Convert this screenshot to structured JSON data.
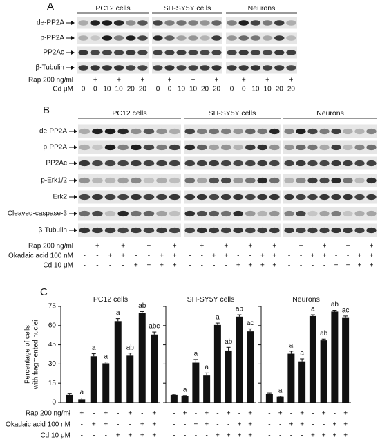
{
  "panel_a": {
    "letter": "A",
    "groups": [
      "PC12 cells",
      "SH-SY5Y cells",
      "Neurons"
    ],
    "rows": [
      "de-PP2A",
      "p-PP2A",
      "PP2Ac",
      "β-Tubulin"
    ],
    "conditions": [
      {
        "label": "Rap 200 ng/ml",
        "values": [
          [
            "-",
            "+",
            "-",
            "+",
            "-",
            "+"
          ],
          [
            "-",
            "+",
            "-",
            "+",
            "-",
            "+"
          ],
          [
            "-",
            "+",
            "-",
            "+",
            "-",
            "+"
          ]
        ]
      },
      {
        "label": "Cd μM",
        "values": [
          [
            0,
            0,
            10,
            10,
            20,
            20
          ],
          [
            0,
            0,
            10,
            10,
            20,
            20
          ],
          [
            0,
            0,
            10,
            10,
            20,
            20
          ]
        ]
      }
    ]
  },
  "panel_b": {
    "letter": "B",
    "groups": [
      "PC12 cells",
      "SH-SY5Y cells",
      "Neurons"
    ],
    "rows": [
      "de-PP2A",
      "p-PP2A",
      "PP2Ac",
      "p-Erk1/2",
      "Erk2",
      "Cleaved-caspase-3",
      "β-Tubulin"
    ],
    "conditions": [
      {
        "label": "Rap 200 ng/ml",
        "values": [
          [
            "-",
            "+",
            "-",
            "+",
            "-",
            "+",
            "-",
            "+"
          ],
          [
            "-",
            "+",
            "-",
            "+",
            "-",
            "+",
            "-",
            "+"
          ],
          [
            "-",
            "+",
            "-",
            "+",
            "-",
            "+",
            "-",
            "+"
          ]
        ]
      },
      {
        "label": "Okadaic acid 100 nM",
        "values": [
          [
            "-",
            "-",
            "+",
            "+",
            "-",
            "-",
            "+",
            "+"
          ],
          [
            "-",
            "-",
            "+",
            "+",
            "-",
            "-",
            "+",
            "+"
          ],
          [
            "-",
            "-",
            "+",
            "+",
            "-",
            "-",
            "+",
            "+"
          ]
        ]
      },
      {
        "label": "Cd 10 μM",
        "values": [
          [
            "-",
            "-",
            "-",
            "-",
            "+",
            "+",
            "+",
            "+"
          ],
          [
            "-",
            "-",
            "-",
            "-",
            "+",
            "+",
            "+",
            "+"
          ],
          [
            "-",
            "-",
            "-",
            "-",
            "+",
            "+",
            "+",
            "+"
          ]
        ]
      }
    ]
  },
  "panel_c": {
    "letter": "C",
    "condition_labels": [
      "Rap 200 ng/ml",
      "Okadaic acid 100 nM",
      "Cd 10 μM"
    ]
  },
  "chart_data": [
    {
      "type": "bar",
      "title": "PC12 cells",
      "ylabel": [
        "Percentage of cells",
        "with fragmented nuclei"
      ],
      "values": [
        6,
        2.5,
        36,
        30.5,
        63.5,
        36.5,
        70,
        53
      ],
      "errors": [
        1.2,
        1,
        2,
        1,
        2,
        2,
        1,
        2
      ],
      "annotations": [
        null,
        "a",
        "a",
        "a",
        "a",
        "ab",
        "ab",
        "abc"
      ],
      "conditions": [
        [
          "-",
          "+",
          "-",
          "+",
          "-",
          "+",
          "-",
          "+"
        ],
        [
          "-",
          "-",
          "+",
          "+",
          "-",
          "-",
          "+",
          "+"
        ],
        [
          "-",
          "-",
          "-",
          "-",
          "+",
          "+",
          "+",
          "+"
        ]
      ],
      "color": "#111111",
      "ylim": [
        0,
        75
      ],
      "yticks": [
        0,
        15,
        30,
        45,
        60,
        75
      ]
    },
    {
      "type": "bar",
      "title": "SH-SY5Y cells",
      "values": [
        6,
        5,
        31,
        21.5,
        60.5,
        40.5,
        67,
        55.5
      ],
      "errors": [
        0.5,
        0.5,
        2.5,
        1.5,
        1.5,
        2.5,
        1.5,
        2
      ],
      "annotations": [
        null,
        "a",
        "a",
        "a",
        "a",
        "ab",
        "ab",
        "ac"
      ],
      "conditions": [
        [
          "-",
          "+",
          "-",
          "+",
          "-",
          "+",
          "-",
          "+"
        ],
        [
          "-",
          "-",
          "+",
          "+",
          "-",
          "-",
          "+",
          "+"
        ],
        [
          "-",
          "-",
          "-",
          "-",
          "+",
          "+",
          "+",
          "+"
        ]
      ],
      "color": "#111111",
      "ylim": [
        0,
        75
      ],
      "yticks": [
        0,
        15,
        30,
        45,
        60,
        75
      ]
    },
    {
      "type": "bar",
      "title": "Neurons",
      "values": [
        7,
        4.5,
        38,
        32,
        67.5,
        48.5,
        71,
        66
      ],
      "errors": [
        0.5,
        0.5,
        2,
        2,
        1,
        1,
        1,
        1.5
      ],
      "annotations": [
        null,
        "a",
        "a",
        "a",
        "a",
        "ab",
        "ab",
        "ac"
      ],
      "conditions": [
        [
          "-",
          "+",
          "-",
          "+",
          "-",
          "+",
          "-",
          "+"
        ],
        [
          "-",
          "-",
          "+",
          "+",
          "-",
          "-",
          "+",
          "+"
        ],
        [
          "-",
          "-",
          "-",
          "-",
          "+",
          "+",
          "+",
          "+"
        ]
      ],
      "color": "#111111",
      "ylim": [
        0,
        75
      ],
      "yticks": [
        0,
        15,
        30,
        45,
        60,
        75
      ]
    }
  ]
}
